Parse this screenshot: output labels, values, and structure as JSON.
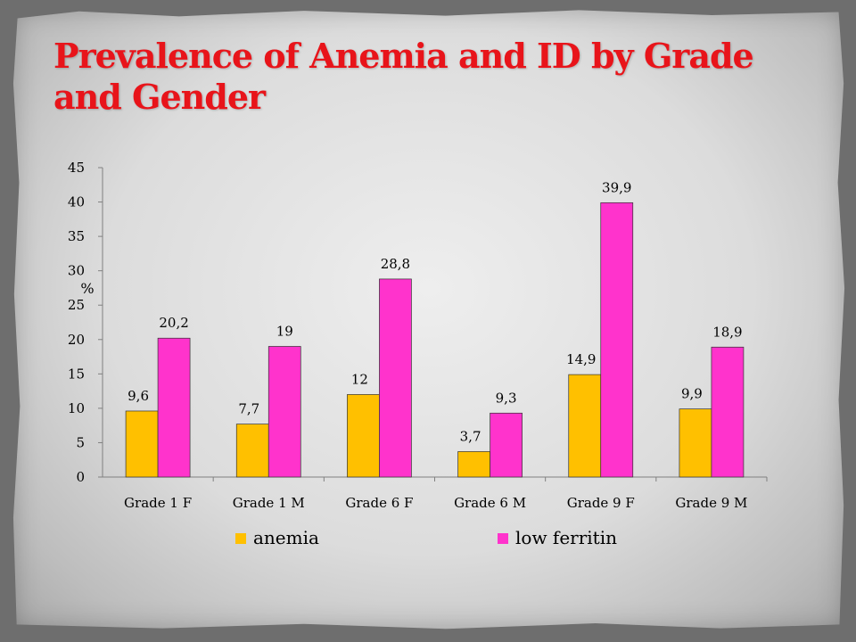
{
  "slide": {
    "title": "Prevalence of Anemia and ID by Grade and Gender"
  },
  "chart_data": {
    "type": "bar",
    "title": "",
    "xlabel": "",
    "ylabel": "%",
    "ylim": [
      0,
      45
    ],
    "yticks": [
      0,
      5,
      10,
      15,
      20,
      25,
      30,
      35,
      40,
      45
    ],
    "categories": [
      "Grade 1 F",
      "Grade 1 M",
      "Grade 6 F",
      "Grade 6 M",
      "Grade 9 F",
      "Grade 9 M"
    ],
    "series": [
      {
        "name": "anemia",
        "color": "#ffc000",
        "values": [
          9.6,
          7.7,
          12,
          3.7,
          14.9,
          9.9
        ],
        "labels": [
          "9,6",
          "7,7",
          "12",
          "3,7",
          "14,9",
          "9,9"
        ]
      },
      {
        "name": "low ferritin",
        "color": "#ff33cc",
        "values": [
          20.2,
          19,
          28.8,
          9.3,
          39.9,
          18.9
        ],
        "labels": [
          "20,2",
          "19",
          "28,8",
          "9,3",
          "39,9",
          "18,9"
        ]
      }
    ],
    "grid": false,
    "legend": "bottom"
  }
}
